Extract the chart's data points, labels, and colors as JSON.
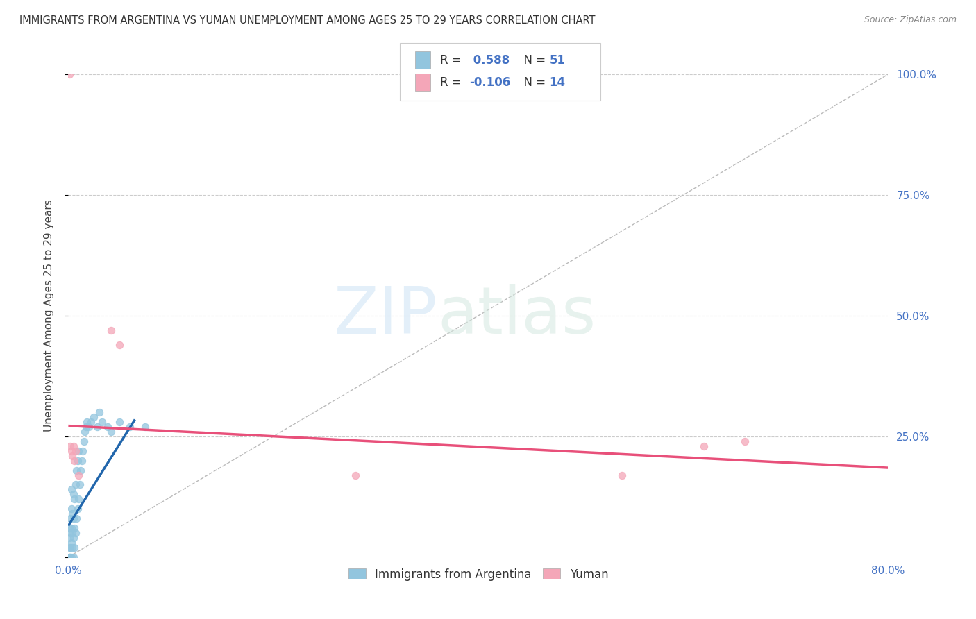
{
  "title": "IMMIGRANTS FROM ARGENTINA VS YUMAN UNEMPLOYMENT AMONG AGES 25 TO 29 YEARS CORRELATION CHART",
  "source": "Source: ZipAtlas.com",
  "ylabel": "Unemployment Among Ages 25 to 29 years",
  "xlim": [
    0,
    0.8
  ],
  "ylim": [
    0,
    1.0
  ],
  "blue_R": 0.588,
  "blue_N": 51,
  "pink_R": -0.106,
  "pink_N": 14,
  "blue_color": "#92c5de",
  "pink_color": "#f4a6b8",
  "blue_line_color": "#2166ac",
  "pink_line_color": "#e8507a",
  "watermark_zip": "ZIP",
  "watermark_atlas": "atlas",
  "blue_scatter_x": [
    0.001,
    0.001,
    0.001,
    0.001,
    0.001,
    0.002,
    0.002,
    0.002,
    0.002,
    0.003,
    0.003,
    0.003,
    0.003,
    0.003,
    0.004,
    0.004,
    0.004,
    0.005,
    0.005,
    0.005,
    0.005,
    0.006,
    0.006,
    0.006,
    0.007,
    0.007,
    0.008,
    0.008,
    0.009,
    0.009,
    0.01,
    0.01,
    0.011,
    0.012,
    0.013,
    0.014,
    0.015,
    0.016,
    0.017,
    0.018,
    0.02,
    0.022,
    0.025,
    0.028,
    0.03,
    0.033,
    0.038,
    0.042,
    0.05,
    0.06,
    0.075
  ],
  "blue_scatter_y": [
    0.0,
    0.0,
    0.02,
    0.04,
    0.06,
    0.0,
    0.02,
    0.05,
    0.08,
    0.0,
    0.03,
    0.06,
    0.1,
    0.14,
    0.02,
    0.05,
    0.09,
    0.0,
    0.04,
    0.08,
    0.13,
    0.02,
    0.06,
    0.12,
    0.05,
    0.15,
    0.08,
    0.18,
    0.1,
    0.2,
    0.12,
    0.22,
    0.15,
    0.18,
    0.2,
    0.22,
    0.24,
    0.26,
    0.27,
    0.28,
    0.27,
    0.28,
    0.29,
    0.27,
    0.3,
    0.28,
    0.27,
    0.26,
    0.28,
    0.27,
    0.27
  ],
  "pink_scatter_x": [
    0.001,
    0.002,
    0.003,
    0.004,
    0.005,
    0.006,
    0.007,
    0.01,
    0.042,
    0.05,
    0.28,
    0.54,
    0.62,
    0.66
  ],
  "pink_scatter_y": [
    1.0,
    0.23,
    0.22,
    0.21,
    0.23,
    0.2,
    0.22,
    0.17,
    0.47,
    0.44,
    0.17,
    0.17,
    0.23,
    0.24
  ],
  "blue_line_x": [
    0.0,
    0.065
  ],
  "blue_line_y": [
    0.065,
    0.285
  ],
  "pink_line_x": [
    0.0,
    0.8
  ],
  "pink_line_y": [
    0.272,
    0.185
  ],
  "ref_line_x": [
    0.0,
    0.8
  ],
  "ref_line_y": [
    0.0,
    1.0
  ]
}
